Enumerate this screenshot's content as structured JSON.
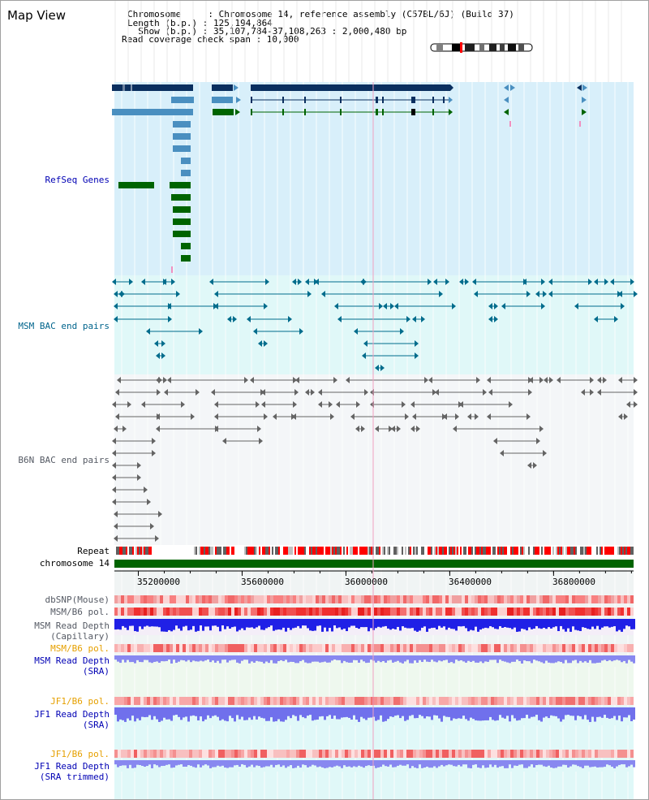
{
  "view": {
    "title": "Map View"
  },
  "header": {
    "chromosome": "Chromosome     : Chromosome 14, reference assembly (C57BL/6J) (Build 37)",
    "length": "Length (b.p.) : 125,194,864",
    "show": "  Show (b.p.) : 35,107,784-37,108,263 : 2,000,480 bp",
    "coverage": "Read coverage check span : 10,000"
  },
  "tracks": {
    "refseq": "RefSeq Genes",
    "msm_bac": "MSM BAC end pairs",
    "b6n_bac": "B6N BAC end pairs",
    "repeat": "Repeat",
    "chromosome": "chromosome 14",
    "dbsnp": "dbSNP(Mouse)",
    "msm_b6_pol": "MSM/B6 pol.",
    "msm_depth_cap_1": "MSM Read Depth",
    "msm_depth_cap_2": "(Capillary)",
    "msm_b6_pol_2": "MSM/B6 pol.",
    "msm_depth_sra_1": "MSM Read Depth",
    "msm_depth_sra_2": "(SRA)",
    "jf1_b6_pol": "JF1/B6 pol.",
    "jf1_depth_sra_1": "JF1 Read Depth",
    "jf1_depth_sra_2": "(SRA)",
    "jf1_b6_pol_2": "JF1/B6 pol.",
    "jf1_depth_trim_1": "JF1 Read Depth",
    "jf1_depth_trim_2": "(SRA trimmed)"
  },
  "ruler": {
    "ticks": [
      "35200000",
      "35600000",
      "36000000",
      "36400000",
      "36800000"
    ],
    "tick_values": [
      35200000,
      35600000,
      36000000,
      36400000,
      36800000
    ],
    "start": 35107784,
    "end": 37108263
  },
  "colors": {
    "gene_dark": "#0a2f5f",
    "gene_mid": "#4a8fc0",
    "gene_green": "#006400",
    "refseq_bg": "#d8effa",
    "msm_bg": "#e0f8f8",
    "b6n_bg": "#f4f6f8",
    "msm_pair": "#006c8c",
    "b6n_pair": "#646464",
    "pol_red": "#f03030",
    "depth_blue": "#2020e6",
    "depth_lavender": "#8888f0"
  }
}
